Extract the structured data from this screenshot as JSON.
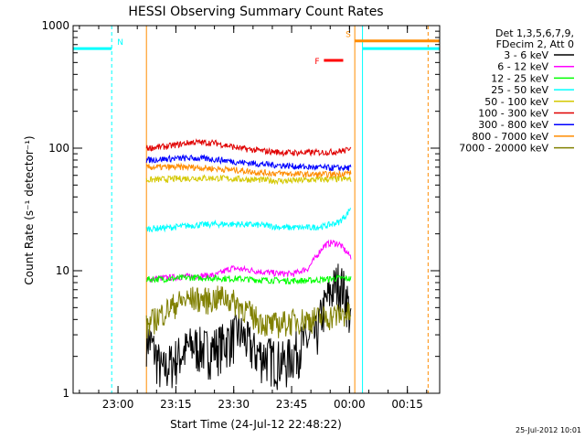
{
  "chart_data": {
    "type": "line",
    "title": "HESSI Observing Summary Count Rates",
    "xlabel": "Start Time (24-Jul-12 22:48:22)",
    "ylabel": "Count Rate (s⁻¹ detector⁻¹)",
    "yscale": "log",
    "ylim": [
      1,
      1000
    ],
    "xlim_minutes_from_start": [
      0,
      95
    ],
    "x_tick_labels": [
      "23:00",
      "23:15",
      "23:30",
      "23:45",
      "00:00",
      "00:15"
    ],
    "y_tick_labels": [
      "1",
      "10",
      "100",
      "1000"
    ],
    "legend": {
      "placement": "outside right",
      "header": [
        "Det 1,3,5,6,7,9,",
        "FDecim 2, Att 0"
      ],
      "entries": [
        {
          "label": "3 - 6 keV",
          "color": "#000000"
        },
        {
          "label": "6 - 12 keV",
          "color": "#ff00ff"
        },
        {
          "label": "12 - 25 keV",
          "color": "#00ff00"
        },
        {
          "label": "25 - 50 keV",
          "color": "#00ffff"
        },
        {
          "label": "50 - 100 keV",
          "color": "#d4c800"
        },
        {
          "label": "100 - 300 keV",
          "color": "#e00000"
        },
        {
          "label": "300 - 800 keV",
          "color": "#0000ff"
        },
        {
          "label": "800 - 7000 keV",
          "color": "#ff8c00"
        },
        {
          "label": "7000 - 20000 keV",
          "color": "#808000"
        }
      ]
    },
    "series": [
      {
        "name": "3 - 6 keV",
        "color": "#000000",
        "points": [
          [
            19,
            3
          ],
          [
            23,
            1.5
          ],
          [
            27,
            2.0
          ],
          [
            31,
            2.5
          ],
          [
            35,
            2.3
          ],
          [
            39,
            2.6
          ],
          [
            43,
            3.2
          ],
          [
            47,
            2.2
          ],
          [
            51,
            2.0
          ],
          [
            55,
            1.8
          ],
          [
            59,
            2.5
          ],
          [
            63,
            3.0
          ],
          [
            65,
            5
          ],
          [
            67,
            7
          ],
          [
            69,
            8.5
          ],
          [
            71,
            6
          ],
          [
            72,
            3.5
          ]
        ]
      },
      {
        "name": "6 - 12 keV",
        "color": "#ff00ff",
        "points": [
          [
            19,
            8.5
          ],
          [
            25,
            8.8
          ],
          [
            31,
            9.0
          ],
          [
            37,
            9.2
          ],
          [
            41,
            10.5
          ],
          [
            45,
            10.2
          ],
          [
            49,
            9.8
          ],
          [
            53,
            9.5
          ],
          [
            57,
            9.4
          ],
          [
            61,
            10.5
          ],
          [
            63,
            13
          ],
          [
            65,
            16
          ],
          [
            67,
            17
          ],
          [
            69,
            16.5
          ],
          [
            71,
            14
          ],
          [
            72,
            13
          ]
        ]
      },
      {
        "name": "12 - 25 keV",
        "color": "#00ff00",
        "points": [
          [
            19,
            8.5
          ],
          [
            25,
            8.6
          ],
          [
            31,
            8.8
          ],
          [
            37,
            8.7
          ],
          [
            43,
            8.6
          ],
          [
            49,
            8.4
          ],
          [
            55,
            8.3
          ],
          [
            61,
            8.3
          ],
          [
            65,
            8.5
          ],
          [
            69,
            8.7
          ],
          [
            72,
            8.6
          ]
        ]
      },
      {
        "name": "25 - 50 keV",
        "color": "#00ffff",
        "points": [
          [
            19,
            22
          ],
          [
            25,
            22.5
          ],
          [
            31,
            23.5
          ],
          [
            37,
            24
          ],
          [
            43,
            24
          ],
          [
            49,
            23.5
          ],
          [
            55,
            22.5
          ],
          [
            61,
            22.5
          ],
          [
            65,
            23
          ],
          [
            69,
            25
          ],
          [
            71,
            29
          ],
          [
            72,
            33
          ]
        ]
      },
      {
        "name": "50 - 100 keV",
        "color": "#d4c800",
        "points": [
          [
            19,
            55
          ],
          [
            25,
            56
          ],
          [
            31,
            57
          ],
          [
            37,
            57
          ],
          [
            43,
            56
          ],
          [
            49,
            55
          ],
          [
            55,
            54
          ],
          [
            61,
            55
          ],
          [
            67,
            56
          ],
          [
            72,
            56
          ]
        ]
      },
      {
        "name": "100 - 300 keV",
        "color": "#e00000",
        "points": [
          [
            19,
            100
          ],
          [
            25,
            104
          ],
          [
            31,
            112
          ],
          [
            37,
            110
          ],
          [
            43,
            100
          ],
          [
            49,
            95
          ],
          [
            55,
            92
          ],
          [
            61,
            92
          ],
          [
            67,
            93
          ],
          [
            71,
            96
          ],
          [
            72,
            105
          ]
        ]
      },
      {
        "name": "300 - 800 keV",
        "color": "#0000ff",
        "points": [
          [
            19,
            80
          ],
          [
            25,
            82
          ],
          [
            31,
            83
          ],
          [
            37,
            81
          ],
          [
            43,
            77
          ],
          [
            49,
            74
          ],
          [
            55,
            72
          ],
          [
            61,
            70
          ],
          [
            67,
            69
          ],
          [
            72,
            69
          ]
        ]
      },
      {
        "name": "800 - 7000 keV",
        "color": "#ff8c00",
        "points": [
          [
            19,
            70
          ],
          [
            25,
            70
          ],
          [
            31,
            70
          ],
          [
            37,
            68
          ],
          [
            43,
            66
          ],
          [
            49,
            63
          ],
          [
            55,
            62
          ],
          [
            61,
            61
          ],
          [
            67,
            61
          ],
          [
            72,
            63
          ]
        ]
      },
      {
        "name": "7000 - 20000 keV",
        "color": "#808000",
        "points": [
          [
            19,
            3.5
          ],
          [
            23,
            4.5
          ],
          [
            27,
            5.5
          ],
          [
            31,
            6.0
          ],
          [
            35,
            5.8
          ],
          [
            39,
            6.2
          ],
          [
            43,
            5.3
          ],
          [
            47,
            4.2
          ],
          [
            51,
            3.6
          ],
          [
            55,
            3.8
          ],
          [
            59,
            4.0
          ],
          [
            63,
            4.1
          ],
          [
            67,
            4.3
          ],
          [
            71,
            4.5
          ],
          [
            72,
            4.4
          ]
        ]
      }
    ],
    "spans": [
      {
        "color": "#00ffff",
        "x0": 0,
        "x1": 10,
        "y": 650,
        "dashed_end": true,
        "label": "N",
        "label_color": "#00ffff"
      },
      {
        "color": "#ff8c00",
        "x0": 73,
        "x1": 95,
        "y": 750,
        "dashed_end": false,
        "label": "S",
        "label_color": "#ff8c00"
      },
      {
        "color": "#00ffff",
        "x0": 75,
        "x1": 95,
        "y": 650,
        "dashed_end": false,
        "label": "",
        "label_color": "#00ffff"
      }
    ],
    "flare_marker": {
      "label": "F",
      "color": "#ff0000",
      "x0": 65,
      "x1": 70,
      "y": 520
    },
    "vertical_lines": [
      {
        "x": 0,
        "color": "#00ffff",
        "style": "solid"
      },
      {
        "x": 19,
        "color": "#ff8c00",
        "style": "solid"
      },
      {
        "x": 10,
        "color": "#00ffff",
        "style": "dashed"
      },
      {
        "x": 73,
        "color": "#ff8c00",
        "style": "solid"
      },
      {
        "x": 75,
        "color": "#00ffff",
        "style": "solid"
      },
      {
        "x": 92,
        "color": "#ff8c00",
        "style": "dashed"
      },
      {
        "x": 95,
        "color": "#00ffff",
        "style": "dashed"
      }
    ]
  },
  "footer": {
    "timestamp": "25-Jul-2012 10:01"
  }
}
